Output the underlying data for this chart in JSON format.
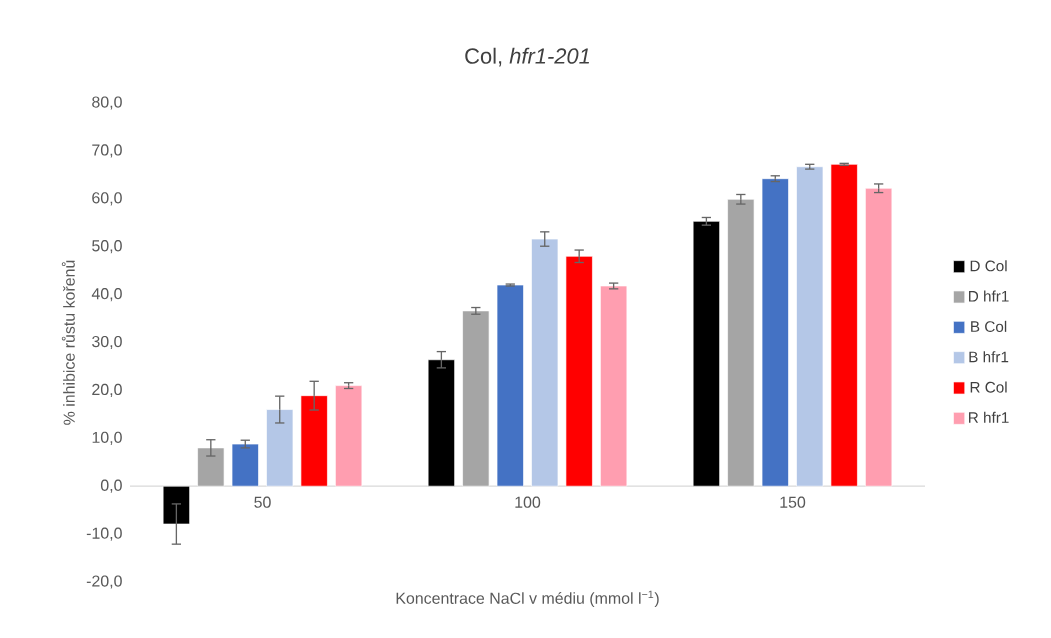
{
  "chart_data": {
    "type": "bar",
    "title": "Col, *hfr1-201*",
    "xlabel": "Koncentrace NaCl v médiu (mmol l$^{−1}$)",
    "ylabel": "% inhibice růstu kořenů",
    "categories": [
      "50",
      "100",
      "150"
    ],
    "series": [
      {
        "name": "D Col",
        "color": "#000000",
        "values": [
          -7.9,
          26.4,
          55.3
        ],
        "errors": [
          4.2,
          1.7,
          0.8
        ]
      },
      {
        "name": "D hfr1",
        "color": "#a5a5a5",
        "values": [
          8.0,
          36.6,
          59.9
        ],
        "errors": [
          1.7,
          0.7,
          1.0
        ]
      },
      {
        "name": "B Col",
        "color": "#4472c4",
        "values": [
          8.8,
          42.0,
          64.2
        ],
        "errors": [
          0.8,
          0.2,
          0.6
        ]
      },
      {
        "name": "B hfr1",
        "color": "#b4c7e7",
        "values": [
          16.0,
          51.6,
          66.7
        ],
        "errors": [
          2.8,
          1.5,
          0.5
        ]
      },
      {
        "name": "R Col",
        "color": "#ff0000",
        "values": [
          18.9,
          48.0,
          67.2
        ],
        "errors": [
          3.0,
          1.3,
          0.2
        ]
      },
      {
        "name": "R hfr1",
        "color": "#ff9eb0",
        "values": [
          21.0,
          41.8,
          62.2
        ],
        "errors": [
          0.6,
          0.6,
          0.9
        ]
      }
    ],
    "ylim": [
      -20,
      80
    ],
    "yticks": [
      {
        "value": -20,
        "label": "-20,0"
      },
      {
        "value": -10,
        "label": "-10,0"
      },
      {
        "value": 0,
        "label": "0,0"
      },
      {
        "value": 10,
        "label": "10,0"
      },
      {
        "value": 20,
        "label": "20,0"
      },
      {
        "value": 30,
        "label": "30,0"
      },
      {
        "value": 40,
        "label": "40,0"
      },
      {
        "value": 50,
        "label": "50,0"
      },
      {
        "value": 60,
        "label": "60,0"
      },
      {
        "value": 70,
        "label": "70,0"
      },
      {
        "value": 80,
        "label": "80,0"
      }
    ],
    "legend": "right"
  }
}
